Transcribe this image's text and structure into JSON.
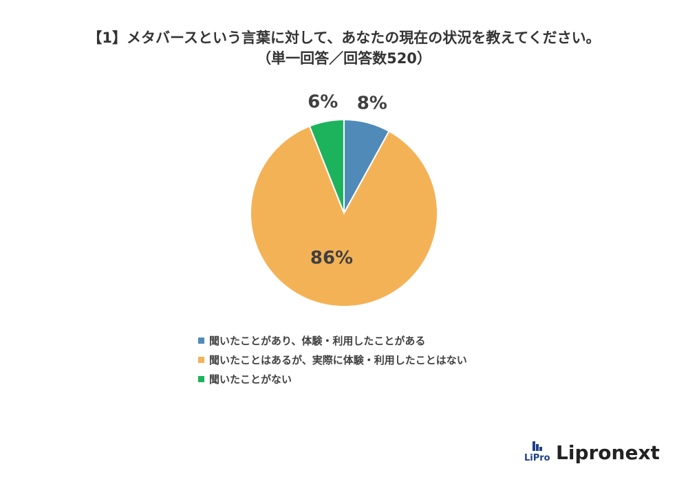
{
  "title": {
    "line1": "【1】メタバースという言葉に対して、あなたの現在の状況を教えてください。",
    "line2": "（単一回答／回答数520）"
  },
  "chart_data": {
    "type": "pie",
    "categories": [
      "聞いたことがあり、体験・利用したことがある",
      "聞いたことはあるが、実際に体験・利用したことはない",
      "聞いたことがない"
    ],
    "values": [
      8,
      86,
      6
    ],
    "data_labels": [
      "8%",
      "86%",
      "6%"
    ],
    "colors": [
      "#4f8ab9",
      "#f4b257",
      "#1db35c"
    ],
    "legend_position": "bottom",
    "start_angle": "top, clockwise"
  },
  "brand": {
    "name": "Lipronext",
    "logo_text": "LiPro"
  }
}
